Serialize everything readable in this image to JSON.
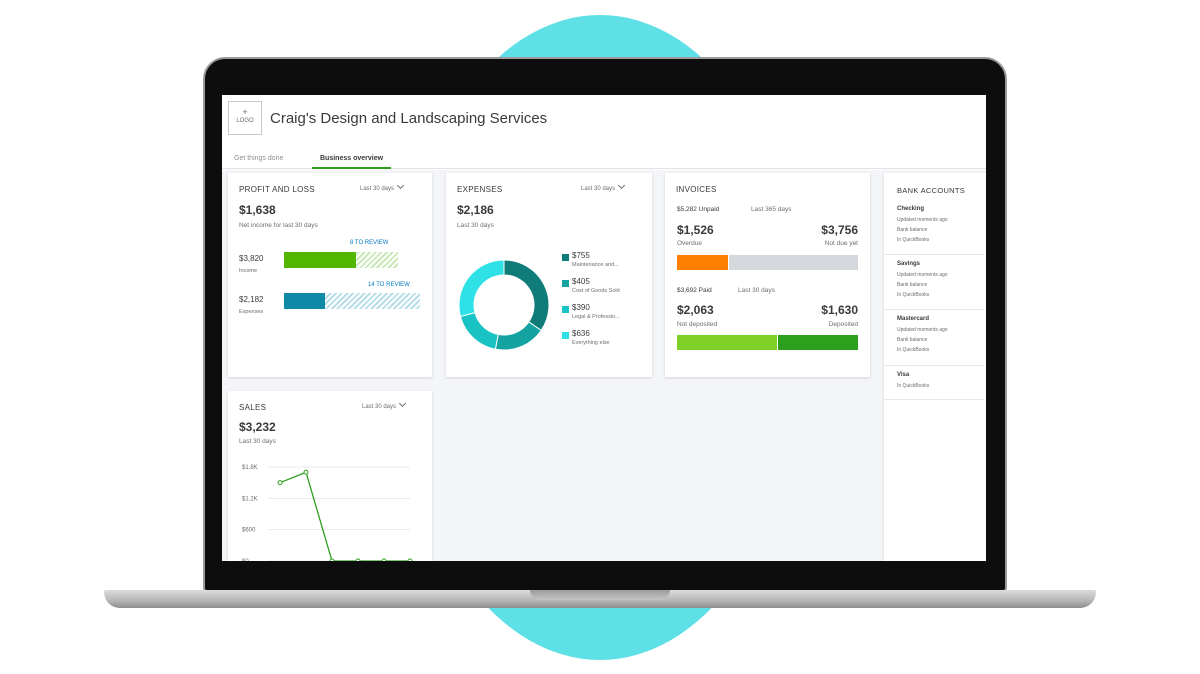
{
  "header": {
    "logo_plus": "+",
    "logo_label": "LOGO",
    "company_name": "Craig's Design and Landscaping Services"
  },
  "tabs": [
    {
      "label": "Get things done",
      "active": false
    },
    {
      "label": "Business overview",
      "active": true
    }
  ],
  "profit_loss": {
    "title": "PROFIT AND LOSS",
    "period": "Last 30 days",
    "net_income": "$1,638",
    "net_income_label": "Net income for last 30 days",
    "income": {
      "amount": "$3,820",
      "label": "Income",
      "review": "8 TO REVIEW",
      "reviewed_fraction": 0.63
    },
    "expenses": {
      "amount": "$2,182",
      "label": "Expenses",
      "review": "14 TO REVIEW",
      "reviewed_fraction": 0.3
    }
  },
  "expenses": {
    "title": "EXPENSES",
    "period": "Last 30 days",
    "total": "$2,186",
    "total_label": "Last 30 days",
    "categories": [
      {
        "amount": "$755",
        "label": "Maintenance and...",
        "value": 755,
        "color": "#0f7c7a"
      },
      {
        "amount": "$405",
        "label": "Cost of Goods Sold",
        "value": 405,
        "color": "#14a3a0"
      },
      {
        "amount": "$390",
        "label": "Legal & Professio...",
        "value": 390,
        "color": "#19c3c4"
      },
      {
        "amount": "$636",
        "label": "Everything else",
        "value": 636,
        "color": "#2de1e6"
      }
    ]
  },
  "invoices": {
    "title": "INVOICES",
    "unpaid_amount": "$5,282 Unpaid",
    "unpaid_period": "Last 365 days",
    "overdue_amount": "$1,526",
    "overdue_label": "Overdue",
    "not_due_amount": "$3,756",
    "not_due_label": "Not due yet",
    "overdue_fraction": 0.29,
    "paid_amount": "$3,692 Paid",
    "paid_period": "Last 30 days",
    "not_deposited_amount": "$2,063",
    "not_deposited_label": "Not deposited",
    "deposited_amount": "$1,630",
    "deposited_label": "Deposited",
    "not_deposited_fraction": 0.56,
    "colors": {
      "overdue": "#ff8000",
      "not_due": "#d4d7dc",
      "not_deposited": "#7fd128",
      "deposited": "#2ca01c"
    }
  },
  "bank_accounts": {
    "title": "BANK ACCOUNTS",
    "accounts": [
      {
        "name": "Checking",
        "lines": [
          "Updated moments ago",
          "Bank balance",
          "In QuickBooks"
        ]
      },
      {
        "name": "Savings",
        "lines": [
          "Updated moments ago",
          "Bank balance",
          "In QuickBooks"
        ]
      },
      {
        "name": "Mastercard",
        "lines": [
          "Updated moments ago",
          "Bank balance",
          "In QuickBooks"
        ]
      },
      {
        "name": "Visa",
        "lines": [
          "In QuickBooks"
        ]
      }
    ]
  },
  "sales": {
    "title": "SALES",
    "period": "Last 30 days",
    "total": "$3,232",
    "total_label": "Last 30 days"
  },
  "chart_data": {
    "type": "line",
    "title": "",
    "x": [
      1,
      2,
      3,
      4,
      5,
      6
    ],
    "series": [
      {
        "values": [
          1500,
          1700,
          0,
          0,
          0,
          0
        ],
        "color": "#2ca01c"
      }
    ],
    "y_ticks": [
      "$1.8K",
      "$1.2K",
      "$600",
      "$0"
    ],
    "ylim": [
      0,
      1800
    ],
    "grid": true
  }
}
